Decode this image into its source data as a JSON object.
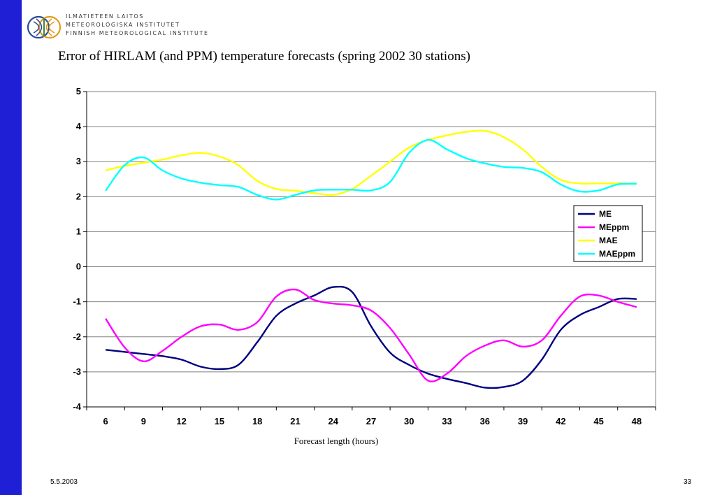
{
  "header": {
    "org_lines": [
      "ILMATIETEEN LAITOS",
      "METEOROLOGISKA INSTITUTET",
      "FINNISH METEOROLOGICAL INSTITUTE"
    ],
    "logo_icon": "fmi-logo-icon",
    "left_bar_color": "#1f1fd6"
  },
  "footer": {
    "date": "5.5.2003",
    "page": "33"
  },
  "chart_data": {
    "type": "line",
    "title": "Error of HIRLAM (and PPM) temperature forecasts (spring 2002 30 stations)",
    "xlabel": "Forecast length (hours)",
    "ylabel": "",
    "categories": [
      "6",
      "9",
      "12",
      "15",
      "18",
      "21",
      "24",
      "27",
      "30",
      "33",
      "36",
      "39",
      "42",
      "45",
      "48"
    ],
    "x": [
      6,
      7.5,
      9,
      10.5,
      12,
      13.5,
      15,
      16.5,
      18,
      19.5,
      21,
      22.5,
      24,
      25.5,
      27,
      28.5,
      30,
      31.5,
      33,
      34.5,
      36,
      37.5,
      39,
      40.5,
      42,
      43.5,
      45,
      46.5,
      48
    ],
    "ylim": [
      -4,
      5
    ],
    "yticks": [
      -4,
      -3,
      -2,
      -1,
      0,
      1,
      2,
      3,
      4,
      5
    ],
    "grid": "horizontal",
    "legend": "right",
    "series": [
      {
        "name": "ME",
        "color": "#000080",
        "values": [
          -2.37,
          -2.43,
          -2.49,
          -2.55,
          -2.65,
          -2.85,
          -2.92,
          -2.8,
          -2.15,
          -1.4,
          -1.05,
          -0.82,
          -0.58,
          -0.72,
          -1.7,
          -2.45,
          -2.8,
          -3.05,
          -3.2,
          -3.32,
          -3.45,
          -3.43,
          -3.25,
          -2.65,
          -1.8,
          -1.38,
          -1.15,
          -0.92,
          -0.92
        ]
      },
      {
        "name": "MEppm",
        "color": "#ff00ff",
        "values": [
          -1.48,
          -2.3,
          -2.7,
          -2.4,
          -2.0,
          -1.7,
          -1.65,
          -1.8,
          -1.58,
          -0.85,
          -0.65,
          -0.95,
          -1.05,
          -1.1,
          -1.25,
          -1.75,
          -2.5,
          -3.25,
          -3.05,
          -2.55,
          -2.25,
          -2.1,
          -2.28,
          -2.1,
          -1.4,
          -0.85,
          -0.82,
          -1.0,
          -1.15
        ]
      },
      {
        "name": "MAE",
        "color": "#ffff00",
        "values": [
          2.75,
          2.88,
          2.97,
          3.06,
          3.18,
          3.25,
          3.15,
          2.9,
          2.45,
          2.22,
          2.17,
          2.1,
          2.05,
          2.22,
          2.6,
          3.0,
          3.4,
          3.62,
          3.75,
          3.85,
          3.88,
          3.7,
          3.35,
          2.85,
          2.48,
          2.38,
          2.38,
          2.38,
          2.38
        ]
      },
      {
        "name": "MAEppm",
        "color": "#00ffff",
        "values": [
          2.17,
          2.9,
          3.12,
          2.75,
          2.52,
          2.4,
          2.33,
          2.28,
          2.05,
          1.92,
          2.05,
          2.18,
          2.2,
          2.2,
          2.18,
          2.42,
          3.25,
          3.62,
          3.35,
          3.1,
          2.95,
          2.85,
          2.82,
          2.7,
          2.35,
          2.15,
          2.18,
          2.35,
          2.37
        ]
      }
    ]
  }
}
